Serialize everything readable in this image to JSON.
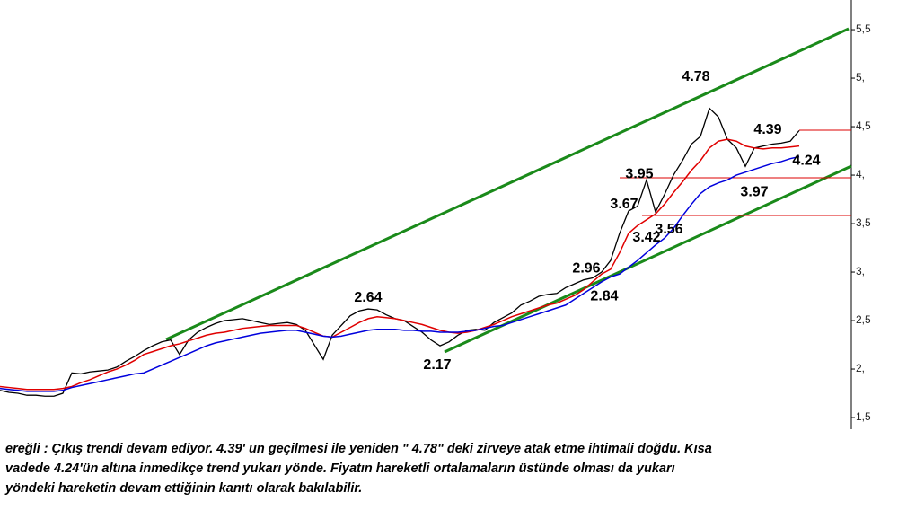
{
  "chart_data": {
    "type": "line",
    "categories": [
      null,
      null,
      null,
      null,
      null,
      null,
      null,
      null,
      null,
      null,
      null,
      null,
      null,
      null,
      null,
      null,
      null,
      null,
      null,
      null,
      null,
      null,
      null,
      null,
      null,
      null,
      null,
      null,
      null,
      null,
      null,
      null,
      null,
      null,
      null,
      null,
      null,
      null,
      null,
      null,
      null,
      null,
      null,
      null,
      null,
      null,
      null,
      null,
      null,
      null,
      null,
      null,
      null,
      null,
      null,
      null,
      null,
      null,
      null,
      null,
      null,
      null,
      null,
      null,
      null,
      null,
      null,
      null,
      null,
      null,
      null,
      null,
      null,
      null,
      null,
      null,
      null,
      null,
      null,
      null,
      null,
      null,
      null,
      null,
      null,
      null,
      null,
      null,
      null,
      null
    ],
    "series": [
      {
        "color": "#000000",
        "values": [
          1.78,
          1.76,
          1.75,
          1.73,
          1.73,
          1.72,
          1.72,
          1.75,
          1.96,
          1.95,
          1.97,
          1.98,
          1.99,
          2.02,
          2.08,
          2.13,
          2.19,
          2.24,
          2.28,
          2.3,
          2.15,
          2.3,
          2.38,
          2.43,
          2.47,
          2.5,
          2.51,
          2.52,
          2.5,
          2.48,
          2.46,
          2.47,
          2.48,
          2.46,
          2.4,
          2.25,
          2.1,
          2.35,
          2.45,
          2.55,
          2.6,
          2.62,
          2.61,
          2.56,
          2.52,
          2.5,
          2.44,
          2.38,
          2.3,
          2.24,
          2.28,
          2.35,
          2.4,
          2.41,
          2.4,
          2.48,
          2.53,
          2.58,
          2.66,
          2.7,
          2.75,
          2.77,
          2.78,
          2.84,
          2.88,
          2.92,
          2.94,
          3.0,
          3.12,
          3.4,
          3.63,
          3.68,
          3.95,
          3.62,
          3.8,
          4.0,
          4.15,
          4.32,
          4.4,
          4.69,
          4.6,
          4.37,
          4.28,
          4.09,
          4.28,
          4.3,
          4.32,
          4.33,
          4.35,
          4.46
        ]
      },
      {
        "color": "#e00000",
        "values": [
          1.82,
          1.81,
          1.8,
          1.79,
          1.79,
          1.79,
          1.79,
          1.8,
          1.82,
          1.86,
          1.89,
          1.93,
          1.97,
          2.0,
          2.04,
          2.09,
          2.15,
          2.18,
          2.21,
          2.24,
          2.26,
          2.29,
          2.32,
          2.35,
          2.37,
          2.38,
          2.4,
          2.42,
          2.43,
          2.44,
          2.45,
          2.45,
          2.45,
          2.45,
          2.42,
          2.38,
          2.34,
          2.33,
          2.38,
          2.43,
          2.48,
          2.52,
          2.54,
          2.53,
          2.52,
          2.5,
          2.48,
          2.46,
          2.43,
          2.4,
          2.38,
          2.37,
          2.38,
          2.4,
          2.43,
          2.46,
          2.5,
          2.54,
          2.57,
          2.6,
          2.63,
          2.66,
          2.68,
          2.72,
          2.76,
          2.82,
          2.9,
          2.98,
          3.03,
          3.2,
          3.4,
          3.48,
          3.54,
          3.6,
          3.7,
          3.82,
          3.93,
          4.05,
          4.15,
          4.28,
          4.35,
          4.37,
          4.35,
          4.3,
          4.28,
          4.27,
          4.28,
          4.28,
          4.29,
          4.3
        ]
      },
      {
        "color": "#0000dd",
        "values": [
          1.8,
          1.79,
          1.78,
          1.77,
          1.77,
          1.77,
          1.77,
          1.78,
          1.81,
          1.83,
          1.85,
          1.87,
          1.89,
          1.91,
          1.93,
          1.95,
          1.96,
          2.0,
          2.04,
          2.08,
          2.12,
          2.16,
          2.2,
          2.24,
          2.27,
          2.29,
          2.31,
          2.33,
          2.35,
          2.37,
          2.38,
          2.39,
          2.4,
          2.4,
          2.38,
          2.36,
          2.34,
          2.33,
          2.34,
          2.36,
          2.38,
          2.4,
          2.41,
          2.41,
          2.41,
          2.4,
          2.4,
          2.39,
          2.39,
          2.38,
          2.38,
          2.38,
          2.39,
          2.4,
          2.42,
          2.44,
          2.45,
          2.48,
          2.51,
          2.54,
          2.57,
          2.6,
          2.63,
          2.66,
          2.72,
          2.78,
          2.84,
          2.9,
          2.95,
          2.98,
          3.05,
          3.12,
          3.2,
          3.28,
          3.35,
          3.45,
          3.58,
          3.7,
          3.81,
          3.88,
          3.92,
          3.95,
          4.0,
          4.03,
          4.06,
          4.09,
          4.12,
          4.14,
          4.17,
          4.19
        ]
      }
    ],
    "ylim": [
      1.38,
      5.806
    ],
    "yticks": [
      {
        "value": 1.5,
        "label": "1,5"
      },
      {
        "value": 2,
        "label": "2,"
      },
      {
        "value": 2.5,
        "label": "2,5"
      },
      {
        "value": 3,
        "label": "3,"
      },
      {
        "value": 3.5,
        "label": "3,5"
      },
      {
        "value": 4,
        "label": "4,"
      },
      {
        "value": 4.5,
        "label": "4,5"
      },
      {
        "value": 5,
        "label": "5,"
      },
      {
        "value": 5.5,
        "label": "5,5"
      }
    ],
    "annotations": [
      {
        "text": "4.78",
        "value": 4.78
      },
      {
        "text": "4.39",
        "value": 4.39
      },
      {
        "text": "4.24",
        "value": 4.24
      },
      {
        "text": "3.95",
        "value": 3.95
      },
      {
        "text": "3.97",
        "value": 3.97
      },
      {
        "text": "3.67",
        "value": 3.67
      },
      {
        "text": "3.56",
        "value": 3.56
      },
      {
        "text": "3.42",
        "value": 3.42
      },
      {
        "text": "2.96",
        "value": 2.96
      },
      {
        "text": "2.84",
        "value": 2.84
      },
      {
        "text": "2.64",
        "value": 2.64
      },
      {
        "text": "2.17",
        "value": 2.17
      }
    ],
    "caption": [
      "ereğli : Çıkış trendi devam ediyor. 4.39' un geçilmesi ile yeniden \" 4.78\" deki zirveye atak etme ihtimali doğdu. Kısa",
      "vadede 4.24'ün altına inmedikçe trend yukarı yönde. Fiyatın hareketli ortalamaların üstünde olması da yukarı",
      "yöndeki hareketin devam ettiğinin kanıtı olarak bakılabilir."
    ]
  }
}
